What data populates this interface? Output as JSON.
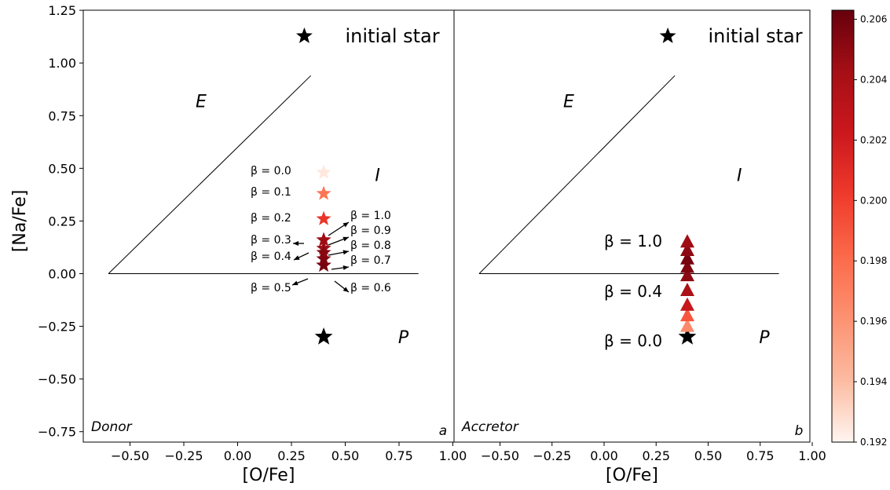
{
  "chart_data": [
    {
      "panel_label": "a",
      "corner_label": "Donor",
      "type": "scatter",
      "xlabel": "[O/Fe]",
      "ylabel": "[Na/Fe]",
      "xlim": [
        -0.72,
        1.0
      ],
      "ylim": [
        -0.8,
        1.25
      ],
      "xticks": [
        "−0.50",
        "−0.25",
        "0.00",
        "0.25",
        "0.50",
        "0.75",
        "1.00"
      ],
      "yticks": [
        "−0.75",
        "−0.50",
        "−0.25",
        "0.00",
        "0.25",
        "0.50",
        "0.75",
        "1.00",
        "1.25"
      ],
      "region_labels": [
        "E",
        "I",
        "P"
      ],
      "initial_star_label": "initial star",
      "points": [
        {
          "beta": "β = 0.0",
          "x": 0.4,
          "y": 0.48,
          "c": 0.1925
        },
        {
          "beta": "β = 0.1",
          "x": 0.4,
          "y": 0.38,
          "c": 0.1975
        },
        {
          "beta": "β = 0.2",
          "x": 0.4,
          "y": 0.26,
          "c": 0.2005
        },
        {
          "beta": "β = 0.3",
          "x": 0.4,
          "y": 0.16,
          "c": 0.2035
        },
        {
          "beta": "β = 0.4",
          "x": 0.4,
          "y": 0.12,
          "c": 0.2045
        },
        {
          "beta": "β = 0.5",
          "x": 0.4,
          "y": 0.04,
          "c": 0.2055
        },
        {
          "beta": "β = 0.6",
          "x": 0.4,
          "y": 0.04,
          "c": 0.2058
        },
        {
          "beta": "β = 0.7",
          "x": 0.4,
          "y": 0.04,
          "c": 0.2058
        },
        {
          "beta": "β = 0.8",
          "x": 0.4,
          "y": 0.07,
          "c": 0.2055
        },
        {
          "beta": "β = 0.9",
          "x": 0.4,
          "y": 0.1,
          "c": 0.2052
        },
        {
          "beta": "β = 1.0",
          "x": 0.4,
          "y": 0.16,
          "c": 0.2045
        }
      ],
      "initial_star": {
        "x": 0.4,
        "y": -0.3
      }
    },
    {
      "panel_label": "b",
      "corner_label": "Accretor",
      "type": "scatter",
      "xlabel": "[O/Fe]",
      "xlim": [
        -0.72,
        1.0
      ],
      "ylim": [
        -0.8,
        1.25
      ],
      "xticks": [
        "−0.50",
        "−0.25",
        "0.00",
        "0.25",
        "0.50",
        "0.75",
        "1.00"
      ],
      "region_labels": [
        "E",
        "I",
        "P"
      ],
      "initial_star_label": "initial star",
      "beta_labels": [
        "β = 1.0",
        "β = 0.4",
        "β = 0.0"
      ],
      "points": [
        {
          "x": 0.4,
          "y": -0.25,
          "c": 0.1965
        },
        {
          "x": 0.4,
          "y": -0.2,
          "c": 0.199
        },
        {
          "x": 0.4,
          "y": -0.15,
          "c": 0.2025
        },
        {
          "x": 0.4,
          "y": -0.08,
          "c": 0.204
        },
        {
          "x": 0.4,
          "y": -0.01,
          "c": 0.205
        },
        {
          "x": 0.4,
          "y": 0.03,
          "c": 0.2055
        },
        {
          "x": 0.4,
          "y": 0.07,
          "c": 0.2058
        },
        {
          "x": 0.4,
          "y": 0.11,
          "c": 0.205
        },
        {
          "x": 0.4,
          "y": 0.15,
          "c": 0.2045
        }
      ],
      "initial_star": {
        "x": 0.4,
        "y": -0.3
      }
    }
  ],
  "colorbar": {
    "min": 0.192,
    "max": 0.2063,
    "ticks": [
      "0.192",
      "0.194",
      "0.196",
      "0.198",
      "0.200",
      "0.202",
      "0.204",
      "0.206"
    ],
    "colormap": [
      "#fff5f0",
      "#fcbba1",
      "#fc9272",
      "#fb6a4a",
      "#ef3b2c",
      "#cb181d",
      "#a50f15",
      "#67000d"
    ]
  }
}
